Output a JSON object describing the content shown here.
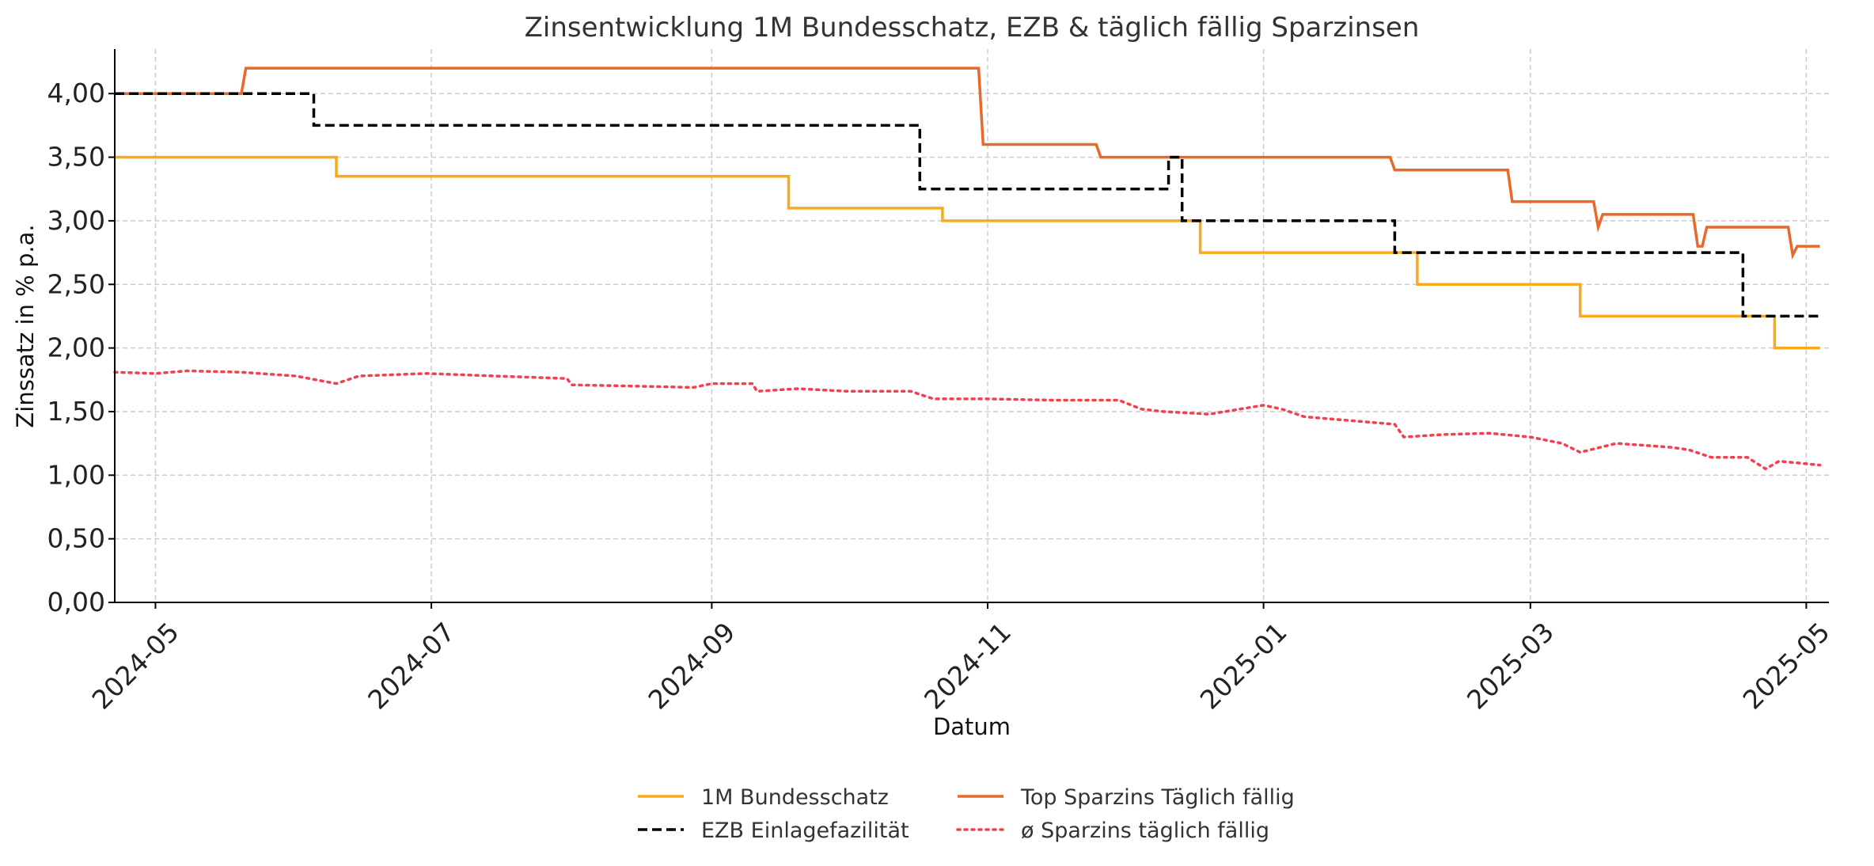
{
  "chart_data": {
    "type": "line",
    "title": "Zinsentwicklung 1M Bundesschatz, EZB & täglich fällig Sparzinsen",
    "xlabel": "Datum",
    "ylabel": "Zinssatz in % p.a.",
    "xlim": [
      "2024-04-22",
      "2025-05-06"
    ],
    "ylim": [
      0,
      4.35
    ],
    "x_ticks": [
      "2024-05",
      "2024-07",
      "2024-09",
      "2024-11",
      "2025-01",
      "2025-03",
      "2025-05"
    ],
    "y_ticks": [
      "0,00",
      "0,50",
      "1,00",
      "1,50",
      "2,00",
      "2,50",
      "3,00",
      "3,50",
      "4,00"
    ],
    "grid": true,
    "legend_position": "bottom-center",
    "series": [
      {
        "name": "1M Bundesschatz",
        "color": "#f9a91b",
        "style": "solid",
        "x": [
          "2024-04-22",
          "2024-06-10",
          "2024-06-10",
          "2024-09-18",
          "2024-09-18",
          "2024-10-22",
          "2024-10-22",
          "2024-12-18",
          "2024-12-18",
          "2025-02-04",
          "2025-02-04",
          "2025-03-12",
          "2025-03-12",
          "2025-04-24",
          "2025-04-24",
          "2025-05-04"
        ],
        "y": [
          3.5,
          3.5,
          3.35,
          3.35,
          3.1,
          3.1,
          3.0,
          3.0,
          2.75,
          2.75,
          2.5,
          2.5,
          2.25,
          2.25,
          2.0,
          2.0
        ]
      },
      {
        "name": "EZB Einlagefazilität",
        "color": "#000000",
        "style": "dashed",
        "x": [
          "2024-04-22",
          "2024-06-05",
          "2024-06-05",
          "2024-10-17",
          "2024-10-17",
          "2024-12-11",
          "2024-12-11",
          "2024-12-14",
          "2024-12-14",
          "2025-01-30",
          "2025-01-30",
          "2025-04-17",
          "2025-04-17",
          "2025-05-04"
        ],
        "y": [
          4.0,
          4.0,
          3.75,
          3.75,
          3.25,
          3.25,
          3.5,
          3.5,
          3.0,
          3.0,
          2.75,
          2.75,
          2.25,
          2.25
        ]
      },
      {
        "name": "Top Sparzins Täglich fällig",
        "color": "#e8692a",
        "style": "solid",
        "x": [
          "2024-04-22",
          "2024-05-20",
          "2024-05-21",
          "2024-10-30",
          "2024-10-31",
          "2024-11-25",
          "2024-11-26",
          "2025-01-29",
          "2025-01-30",
          "2025-02-24",
          "2025-02-25",
          "2025-03-15",
          "2025-03-16",
          "2025-03-17",
          "2025-04-06",
          "2025-04-07",
          "2025-04-08",
          "2025-04-09",
          "2025-04-27",
          "2025-04-28",
          "2025-04-29",
          "2025-05-04"
        ],
        "y": [
          4.0,
          4.0,
          4.2,
          4.2,
          3.6,
          3.6,
          3.5,
          3.5,
          3.4,
          3.4,
          3.15,
          3.15,
          2.95,
          3.05,
          3.05,
          2.8,
          2.8,
          2.95,
          2.95,
          2.73,
          2.8,
          2.8
        ]
      },
      {
        "name": "ø Sparzins täglich fällig",
        "color": "#f2404e",
        "style": "dotted",
        "x": [
          "2024-04-22",
          "2024-05-01",
          "2024-05-08",
          "2024-05-20",
          "2024-06-01",
          "2024-06-10",
          "2024-06-15",
          "2024-06-30",
          "2024-07-15",
          "2024-07-31",
          "2024-08-01",
          "2024-08-15",
          "2024-08-28",
          "2024-09-01",
          "2024-09-10",
          "2024-09-11",
          "2024-09-20",
          "2024-10-01",
          "2024-10-15",
          "2024-10-20",
          "2024-11-01",
          "2024-11-15",
          "2024-11-30",
          "2024-12-05",
          "2024-12-10",
          "2024-12-20",
          "2025-01-01",
          "2025-01-05",
          "2025-01-10",
          "2025-01-20",
          "2025-01-30",
          "2025-02-01",
          "2025-02-10",
          "2025-02-20",
          "2025-03-01",
          "2025-03-08",
          "2025-03-12",
          "2025-03-20",
          "2025-04-01",
          "2025-04-05",
          "2025-04-10",
          "2025-04-18",
          "2025-04-22",
          "2025-04-25",
          "2025-05-04"
        ],
        "y": [
          1.81,
          1.8,
          1.82,
          1.81,
          1.78,
          1.72,
          1.78,
          1.8,
          1.78,
          1.76,
          1.71,
          1.7,
          1.69,
          1.72,
          1.72,
          1.66,
          1.68,
          1.66,
          1.66,
          1.6,
          1.6,
          1.59,
          1.59,
          1.52,
          1.5,
          1.48,
          1.55,
          1.52,
          1.46,
          1.43,
          1.4,
          1.3,
          1.32,
          1.33,
          1.3,
          1.25,
          1.18,
          1.25,
          1.22,
          1.2,
          1.14,
          1.14,
          1.05,
          1.11,
          1.08
        ]
      }
    ]
  }
}
